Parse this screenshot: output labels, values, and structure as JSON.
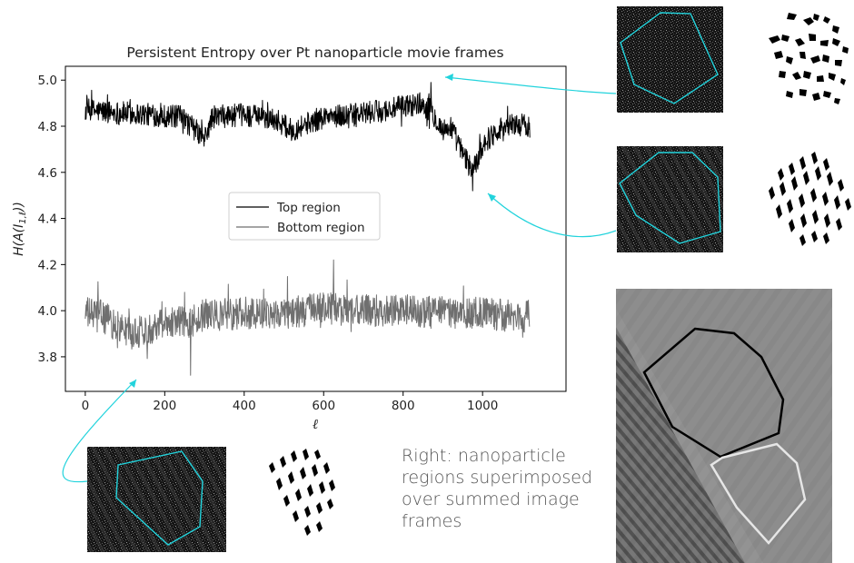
{
  "chart_data": {
    "type": "line",
    "title": "Persistent Entropy over Pt nanoparticle movie frames",
    "xlabel": "ℓ",
    "ylabel": "H(A(I_{1,ℓ}))",
    "xlim": [
      -50,
      1210
    ],
    "ylim": [
      3.65,
      5.06
    ],
    "xticks": [
      0,
      200,
      400,
      600,
      800,
      1000
    ],
    "yticks": [
      3.8,
      4.0,
      4.2,
      4.4,
      4.6,
      4.8,
      5.0
    ],
    "legend_position": "center-left",
    "n_frames": 1120,
    "series": [
      {
        "name": "Top region",
        "color": "#000000",
        "anchors_x": [
          0,
          80,
          160,
          240,
          280,
          300,
          320,
          400,
          480,
          520,
          540,
          600,
          680,
          760,
          840,
          870,
          900,
          920,
          950,
          970,
          985,
          1000,
          1040,
          1080,
          1120
        ],
        "anchors_y": [
          4.87,
          4.86,
          4.85,
          4.84,
          4.78,
          4.74,
          4.84,
          4.85,
          4.83,
          4.78,
          4.8,
          4.84,
          4.85,
          4.87,
          4.9,
          4.87,
          4.78,
          4.8,
          4.68,
          4.62,
          4.64,
          4.72,
          4.79,
          4.81,
          4.8
        ],
        "noise": 0.05,
        "extrema": {
          "max": 4.99,
          "max_at": 870,
          "min": 4.52,
          "min_at": 975
        }
      },
      {
        "name": "Bottom region",
        "color": "#6f6f6f",
        "anchors_x": [
          0,
          40,
          80,
          120,
          160,
          200,
          260,
          300,
          400,
          500,
          600,
          700,
          800,
          900,
          1000,
          1100,
          1120
        ],
        "anchors_y": [
          3.99,
          3.98,
          3.93,
          3.9,
          3.92,
          3.96,
          3.95,
          3.98,
          3.99,
          3.99,
          4.01,
          4.0,
          4.0,
          3.99,
          3.99,
          3.97,
          3.98
        ],
        "noise": 0.07,
        "extrema": {
          "max": 4.22,
          "max_at": 625,
          "min": 3.72,
          "min_at": 265
        }
      }
    ]
  },
  "caption": "Right: nanoparticle regions superimposed over summed image frames",
  "colors": {
    "annotation": "#22d3dc",
    "top_outline": "#000000",
    "bottom_outline": "#e6e6e6",
    "panel_background": "#161616"
  }
}
